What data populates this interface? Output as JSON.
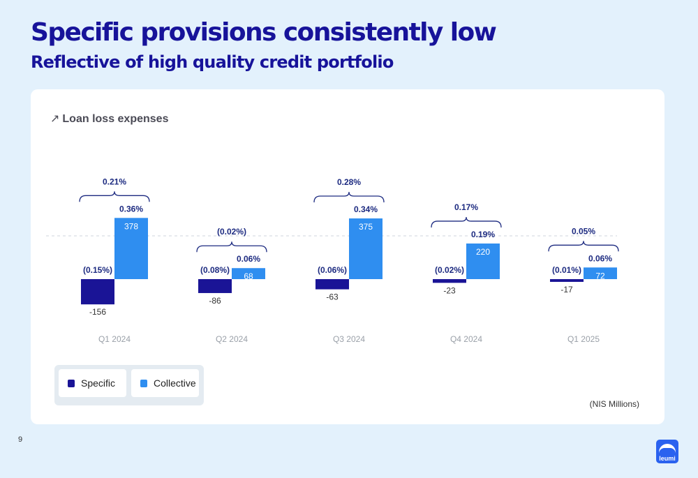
{
  "header": {
    "title": "Specific provisions consistently low",
    "subtitle": "Reflective of high quality credit portfolio"
  },
  "card": {
    "arrow_icon": "↗",
    "heading": "Loan loss expenses",
    "units": "(NIS Millions)"
  },
  "legend": {
    "specific": "Specific",
    "collective": "Collective"
  },
  "colors": {
    "specific": "#1a1496",
    "collective": "#2f8ef0",
    "pct_text": "#1c2a80",
    "value_text": "#333333",
    "category_text": "#9aa0a8"
  },
  "page_number": "9",
  "logo_text": "leumi",
  "chart_data": {
    "type": "bar",
    "title": "Loan loss expenses",
    "categories": [
      "Q1 2024",
      "Q2 2024",
      "Q3 2024",
      "Q4 2024",
      "Q1 2025"
    ],
    "series": [
      {
        "name": "Specific",
        "values": [
          -156,
          -86,
          -63,
          -23,
          -17
        ],
        "value_labels": [
          "-156",
          "-86",
          "-63",
          "-23",
          "-17"
        ],
        "rate_labels": [
          "(0.15%)",
          "(0.08%)",
          "(0.06%)",
          "(0.02%)",
          "(0.01%)"
        ]
      },
      {
        "name": "Collective",
        "values": [
          378,
          68,
          375,
          220,
          72
        ],
        "value_labels": [
          "378",
          "68",
          "375",
          "220",
          "72"
        ],
        "rate_labels": [
          "0.36%",
          "0.06%",
          "0.34%",
          "0.19%",
          "0.06%"
        ]
      }
    ],
    "total_rate_labels": [
      "0.21%",
      "(0.02%)",
      "0.28%",
      "0.17%",
      "0.05%"
    ],
    "units": "NIS Millions",
    "grid": false,
    "legend_position": "bottom-left"
  }
}
